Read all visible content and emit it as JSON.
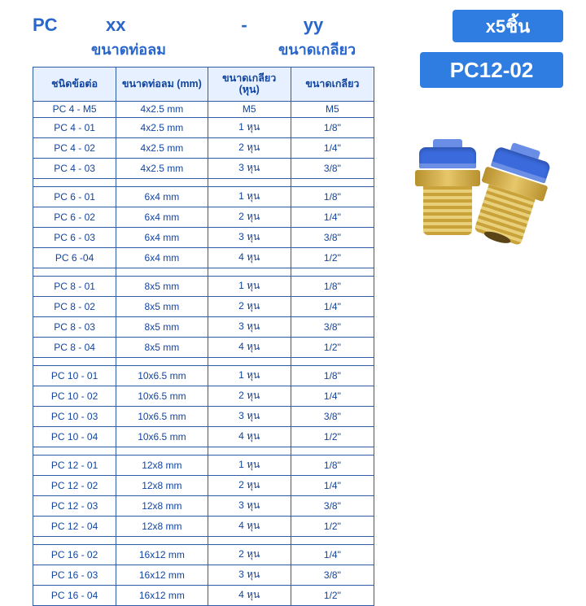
{
  "header": {
    "pc": "PC",
    "xx": "xx",
    "dash": "-",
    "yy": "yy",
    "sub_xx": "ขนาดท่อลม",
    "sub_yy": "ขนาดเกลียว"
  },
  "badges": {
    "qty": "x5ชิ้น",
    "model": "PC12-02"
  },
  "table": {
    "columns": [
      "ชนิดข้อต่อ",
      "ขนาดท่อลม\n(mm)",
      "ขนาดเกลียว\n(หุน)",
      "ขนาดเกลียว"
    ],
    "groups": [
      [
        [
          "PC 4 - M5",
          "4x2.5 mm",
          "M5",
          "M5"
        ],
        [
          "PC 4 - 01",
          "4x2.5 mm",
          "1 หุน",
          "1/8\""
        ],
        [
          "PC 4 - 02",
          "4x2.5 mm",
          "2 หุน",
          "1/4\""
        ],
        [
          "PC 4 - 03",
          "4x2.5 mm",
          "3 หุน",
          "3/8\""
        ]
      ],
      [
        [
          "PC 6 - 01",
          "6x4 mm",
          "1 หุน",
          "1/8\""
        ],
        [
          "PC 6 - 02",
          "6x4 mm",
          "2 หุน",
          "1/4\""
        ],
        [
          "PC 6 - 03",
          "6x4 mm",
          "3 หุน",
          "3/8\""
        ],
        [
          "PC 6  -04",
          "6x4 mm",
          "4 หุน",
          "1/2\""
        ]
      ],
      [
        [
          "PC 8 - 01",
          "8x5 mm",
          "1 หุน",
          "1/8\""
        ],
        [
          "PC 8 - 02",
          "8x5 mm",
          "2 หุน",
          "1/4\""
        ],
        [
          "PC 8 - 03",
          "8x5 mm",
          "3 หุน",
          "3/8\""
        ],
        [
          "PC 8 - 04",
          "8x5 mm",
          "4 หุน",
          "1/2\""
        ]
      ],
      [
        [
          "PC 10 - 01",
          "10x6.5 mm",
          "1 หุน",
          "1/8\""
        ],
        [
          "PC 10 - 02",
          "10x6.5 mm",
          "2 หุน",
          "1/4\""
        ],
        [
          "PC 10 - 03",
          "10x6.5 mm",
          "3 หุน",
          "3/8\""
        ],
        [
          "PC 10 - 04",
          "10x6.5 mm",
          "4 หุน",
          "1/2\""
        ]
      ],
      [
        [
          "PC 12 - 01",
          "12x8 mm",
          "1 หุน",
          "1/8\""
        ],
        [
          "PC 12 - 02",
          "12x8 mm",
          "2 หุน",
          "1/4\""
        ],
        [
          "PC 12 - 03",
          "12x8 mm",
          "3 หุน",
          "3/8\""
        ],
        [
          "PC 12 - 04",
          "12x8 mm",
          "4 หุน",
          "1/2\""
        ]
      ],
      [
        [
          "PC 16 - 02",
          "16x12 mm",
          "2 หุน",
          "1/4\""
        ],
        [
          "PC 16 - 03",
          "16x12 mm",
          "3 หุน",
          "3/8\""
        ],
        [
          "PC 16 - 04",
          "16x12 mm",
          "4 หุน",
          "1/2\""
        ]
      ]
    ]
  },
  "style": {
    "brand_color": "#2966cc",
    "badge_bg": "#2f7de0",
    "badge_text": "#ffffff",
    "table_border": "#2e5aa8",
    "header_bg": "#e6f0ff",
    "cell_text": "#1245a0",
    "body_bg": "#ffffff"
  }
}
